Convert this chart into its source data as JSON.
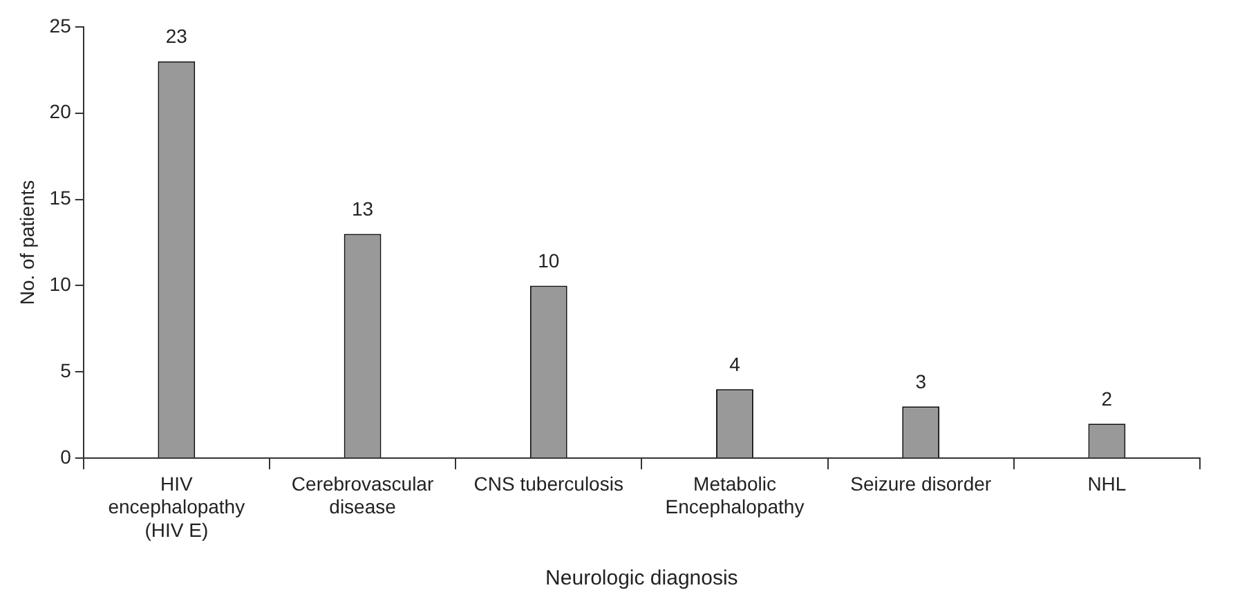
{
  "chart_data": {
    "type": "bar",
    "xlabel": "Neurologic diagnosis",
    "ylabel": "No. of patients",
    "categories": [
      "HIV encephalopathy (HIV E)",
      "Cerebrovascular disease",
      "CNS tuberculosis",
      "Metabolic Encephalopathy",
      "Seizure disorder",
      "NHL"
    ],
    "values": [
      23,
      13,
      10,
      4,
      3,
      2
    ],
    "color": "#999999",
    "ylim": [
      0,
      25
    ],
    "yticks": [
      0,
      5,
      10,
      15,
      20,
      25
    ],
    "grid": false,
    "legend": false,
    "data_labels": true
  }
}
